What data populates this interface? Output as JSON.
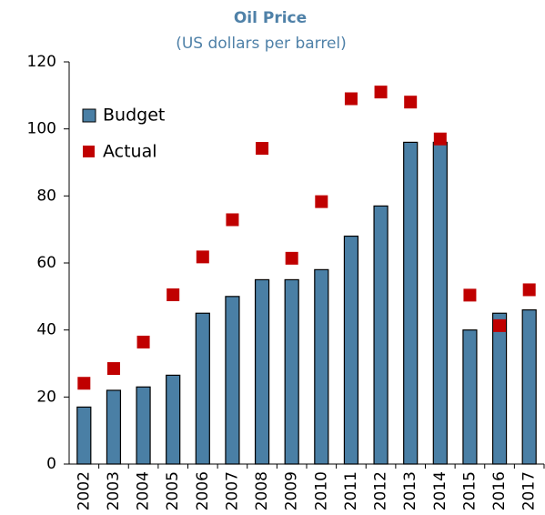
{
  "chart_data": {
    "type": "bar",
    "title": "Oil Price",
    "subtitle": "(US dollars per barrel)",
    "categories": [
      "2002",
      "2003",
      "2004",
      "2005",
      "2006",
      "2007",
      "2008",
      "2009",
      "2010",
      "2011",
      "2012",
      "2013",
      "2014",
      "2015",
      "2016",
      "2017"
    ],
    "series": [
      {
        "name": "Budget",
        "type": "bar",
        "color": "#4a7fa5",
        "values": [
          17,
          22,
          23,
          26.5,
          45,
          50,
          55,
          55,
          58,
          68,
          77,
          96,
          96,
          40,
          45,
          46
        ]
      },
      {
        "name": "Actual",
        "type": "scatter",
        "color": "#c00000",
        "values": [
          24.1,
          28.5,
          36.4,
          50.5,
          61.8,
          72.9,
          94.2,
          61.4,
          78.3,
          109,
          111,
          108,
          97,
          50.4,
          41.3,
          52
        ]
      }
    ],
    "ylim": [
      0,
      120
    ],
    "yticks": [
      0,
      20,
      40,
      60,
      80,
      100,
      120
    ],
    "grid": false,
    "legend": "top-left"
  }
}
